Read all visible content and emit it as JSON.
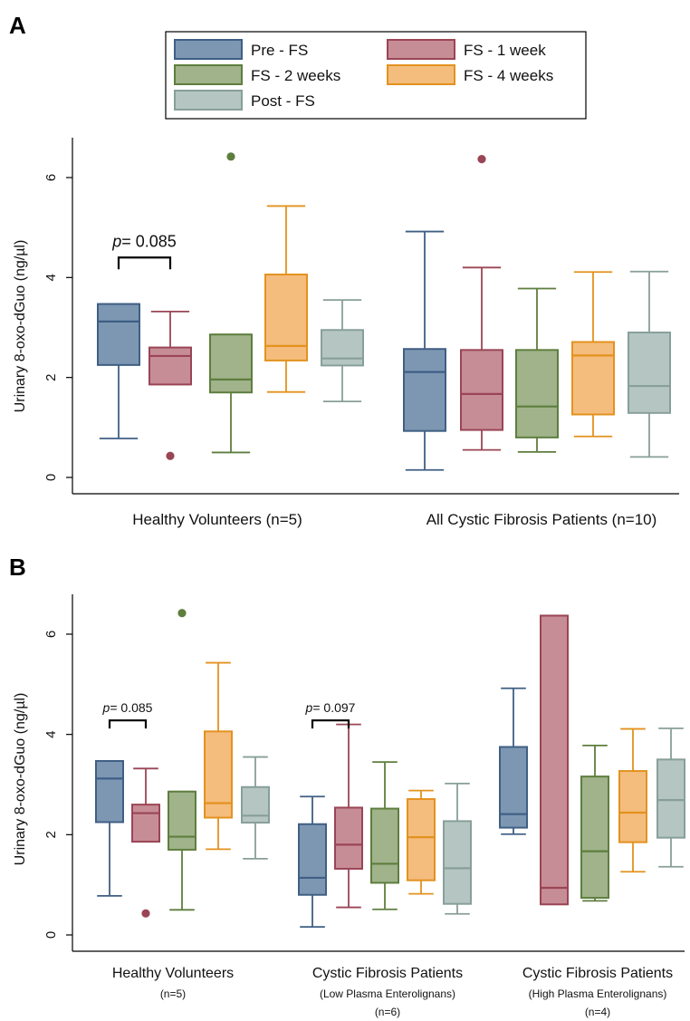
{
  "chart_data": [
    {
      "panel": "A",
      "type": "box",
      "ylabel": "Urinary 8-oxo-dGuo (ng/µl)",
      "ylim": [
        0,
        6.8
      ],
      "yticks": [
        0,
        2,
        4,
        6
      ],
      "legend": {
        "placement": "top",
        "entries": [
          "Pre - FS",
          "FS - 1 week",
          "FS - 2 weeks",
          "FS - 4 weeks",
          "Post - FS"
        ]
      },
      "series_colors": {
        "Pre - FS": {
          "fill": "#7D97B3",
          "stroke": "#3F5F84"
        },
        "FS - 1 week": {
          "fill": "#C78D97",
          "stroke": "#9A4555"
        },
        "FS - 2 weeks": {
          "fill": "#A0B38B",
          "stroke": "#5E7E3E"
        },
        "FS - 4 weeks": {
          "fill": "#F4BD7E",
          "stroke": "#E3921E"
        },
        "Post - FS": {
          "fill": "#B5C6C2",
          "stroke": "#889F99"
        }
      },
      "groups": [
        {
          "label": "Healthy Volunteers (n=5)",
          "sublabels": [],
          "boxes": [
            {
              "series": "Pre - FS",
              "whisker_low": 0.78,
              "q1": 2.25,
              "median": 3.12,
              "q3": 3.47,
              "whisker_high": 3.47,
              "outliers": []
            },
            {
              "series": "FS - 1 week",
              "whisker_low": 1.86,
              "q1": 1.86,
              "median": 2.43,
              "q3": 2.6,
              "whisker_high": 3.32,
              "outliers": [
                0.43
              ]
            },
            {
              "series": "FS - 2 weeks",
              "whisker_low": 0.5,
              "q1": 1.7,
              "median": 1.96,
              "q3": 2.86,
              "whisker_high": 2.86,
              "outliers": [
                6.42
              ]
            },
            {
              "series": "FS - 4 weeks",
              "whisker_low": 1.71,
              "q1": 2.34,
              "median": 2.63,
              "q3": 4.06,
              "whisker_high": 5.43,
              "outliers": []
            },
            {
              "series": "Post - FS",
              "whisker_low": 1.52,
              "q1": 2.24,
              "median": 2.38,
              "q3": 2.95,
              "whisker_high": 3.55,
              "outliers": []
            }
          ]
        },
        {
          "label": "All Cystic Fibrosis Patients (n=10)",
          "sublabels": [],
          "boxes": [
            {
              "series": "Pre - FS",
              "whisker_low": 0.15,
              "q1": 0.93,
              "median": 2.11,
              "q3": 2.57,
              "whisker_high": 4.92,
              "outliers": []
            },
            {
              "series": "FS - 1 week",
              "whisker_low": 0.55,
              "q1": 0.95,
              "median": 1.67,
              "q3": 2.55,
              "whisker_high": 4.2,
              "outliers": [
                6.37
              ]
            },
            {
              "series": "FS - 2 weeks",
              "whisker_low": 0.51,
              "q1": 0.8,
              "median": 1.42,
              "q3": 2.55,
              "whisker_high": 3.78,
              "outliers": []
            },
            {
              "series": "FS - 4 weeks",
              "whisker_low": 0.82,
              "q1": 1.26,
              "median": 2.44,
              "q3": 2.71,
              "whisker_high": 4.11,
              "outliers": []
            },
            {
              "series": "Post - FS",
              "whisker_low": 0.41,
              "q1": 1.29,
              "median": 1.83,
              "q3": 2.9,
              "whisker_high": 4.12,
              "outliers": []
            }
          ]
        }
      ],
      "annotations": [
        {
          "text": "p = 0.085",
          "p_label": "p",
          "value_text": "= 0.085",
          "group": 0,
          "from_box": 0,
          "to_box": 1,
          "y": 4.4
        }
      ]
    },
    {
      "panel": "B",
      "type": "box",
      "ylabel": "Urinary 8-oxo-dGuo (ng/µl)",
      "ylim": [
        0,
        6.8
      ],
      "yticks": [
        0,
        2,
        4,
        6
      ],
      "groups": [
        {
          "label": "Healthy Volunteers",
          "sublabels": [
            "(n=5)"
          ],
          "boxes": [
            {
              "series": "Pre - FS",
              "whisker_low": 0.78,
              "q1": 2.25,
              "median": 3.12,
              "q3": 3.47,
              "whisker_high": 3.47,
              "outliers": []
            },
            {
              "series": "FS - 1 week",
              "whisker_low": 1.86,
              "q1": 1.86,
              "median": 2.43,
              "q3": 2.6,
              "whisker_high": 3.32,
              "outliers": [
                0.43
              ]
            },
            {
              "series": "FS - 2 weeks",
              "whisker_low": 0.5,
              "q1": 1.7,
              "median": 1.96,
              "q3": 2.86,
              "whisker_high": 2.86,
              "outliers": [
                6.42
              ]
            },
            {
              "series": "FS - 4 weeks",
              "whisker_low": 1.71,
              "q1": 2.34,
              "median": 2.63,
              "q3": 4.06,
              "whisker_high": 5.43,
              "outliers": []
            },
            {
              "series": "Post - FS",
              "whisker_low": 1.52,
              "q1": 2.24,
              "median": 2.38,
              "q3": 2.95,
              "whisker_high": 3.55,
              "outliers": []
            }
          ]
        },
        {
          "label": "Cystic Fibrosis Patients",
          "sublabels": [
            "(Low Plasma Enterolignans)",
            "(n=6)"
          ],
          "boxes": [
            {
              "series": "Pre - FS",
              "whisker_low": 0.16,
              "q1": 0.8,
              "median": 1.14,
              "q3": 2.21,
              "whisker_high": 2.76,
              "outliers": []
            },
            {
              "series": "FS - 1 week",
              "whisker_low": 0.55,
              "q1": 1.32,
              "median": 1.8,
              "q3": 2.54,
              "whisker_high": 4.2,
              "outliers": []
            },
            {
              "series": "FS - 2 weeks",
              "whisker_low": 0.51,
              "q1": 1.04,
              "median": 1.42,
              "q3": 2.52,
              "whisker_high": 3.45,
              "outliers": []
            },
            {
              "series": "FS - 4 weeks",
              "whisker_low": 0.82,
              "q1": 1.09,
              "median": 1.95,
              "q3": 2.71,
              "whisker_high": 2.88,
              "outliers": []
            },
            {
              "series": "Post - FS",
              "whisker_low": 0.42,
              "q1": 0.62,
              "median": 1.33,
              "q3": 2.27,
              "whisker_high": 3.02,
              "outliers": []
            }
          ]
        },
        {
          "label": "Cystic Fibrosis Patients",
          "sublabels": [
            "(High Plasma Enterolignans)",
            "(n=4)"
          ],
          "boxes": [
            {
              "series": "Pre - FS",
              "whisker_low": 2.01,
              "q1": 2.14,
              "median": 2.41,
              "q3": 3.75,
              "whisker_high": 4.92,
              "outliers": []
            },
            {
              "series": "FS - 1 week",
              "whisker_low": 0.61,
              "q1": 0.61,
              "median": 0.94,
              "q3": 6.37,
              "whisker_high": 6.37,
              "outliers": []
            },
            {
              "series": "FS - 2 weeks",
              "whisker_low": 0.68,
              "q1": 0.74,
              "median": 1.67,
              "q3": 3.16,
              "whisker_high": 3.78,
              "outliers": []
            },
            {
              "series": "FS - 4 weeks",
              "whisker_low": 1.26,
              "q1": 1.85,
              "median": 2.44,
              "q3": 3.27,
              "whisker_high": 4.11,
              "outliers": []
            },
            {
              "series": "Post - FS",
              "whisker_low": 1.36,
              "q1": 1.94,
              "median": 2.69,
              "q3": 3.5,
              "whisker_high": 4.12,
              "outliers": []
            }
          ]
        }
      ],
      "annotations": [
        {
          "text": "p = 0.085",
          "p_label": "p",
          "value_text": "= 0.085",
          "group": 0,
          "from_box": 0,
          "to_box": 1,
          "y": 4.28
        },
        {
          "text": "p = 0.097",
          "p_label": "p",
          "value_text": "= 0.097",
          "group": 1,
          "from_box": 0,
          "to_box": 1,
          "y": 4.28
        }
      ]
    }
  ]
}
